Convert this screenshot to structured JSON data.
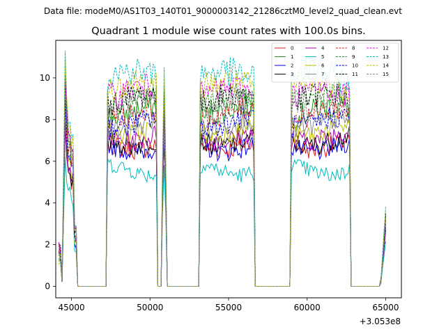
{
  "chart_data": {
    "type": "line",
    "suptitle": "Data file: modeM0/AS1T03_140T01_9000003142_21286cztM0_level2_quad_clean.evt",
    "title": "Quadrant 1 module wise count rates with 100.0s bins.",
    "xlabel": "",
    "ylabel": "",
    "x_offset_label": "+3.053e8",
    "xlim": [
      44000,
      66000
    ],
    "ylim": [
      -0.55,
      11.8
    ],
    "xticks": [
      45000,
      50000,
      55000,
      60000,
      65000
    ],
    "xtick_labels": [
      "45000",
      "50000",
      "55000",
      "60000",
      "65000"
    ],
    "yticks": [
      0,
      2,
      4,
      6,
      8,
      10
    ],
    "ytick_labels": [
      "0",
      "2",
      "4",
      "6",
      "8",
      "10"
    ],
    "legend_position": "top-right",
    "bin_size_s": 100,
    "gap_value": 0,
    "segments": [
      {
        "start": 44200,
        "end": 45300,
        "profile": "spike"
      },
      {
        "start": 47300,
        "end": 50400,
        "profile": "flat"
      },
      {
        "start": 50750,
        "end": 51050,
        "profile": "narrow"
      },
      {
        "start": 53200,
        "end": 56600,
        "profile": "flat"
      },
      {
        "start": 59000,
        "end": 62700,
        "profile": "flat"
      },
      {
        "start": 64700,
        "end": 65000,
        "profile": "rise"
      }
    ],
    "series": [
      {
        "name": "0",
        "color": "#e41a1c",
        "dash": "solid",
        "level": 6.8
      },
      {
        "name": "1",
        "color": "#1a9a1a",
        "dash": "solid",
        "level": 8.4
      },
      {
        "name": "2",
        "color": "#0000ee",
        "dash": "solid",
        "level": 6.7
      },
      {
        "name": "3",
        "color": "#000000",
        "dash": "solid",
        "level": 7.0
      },
      {
        "name": "4",
        "color": "#aa00aa",
        "dash": "solid",
        "level": 7.2
      },
      {
        "name": "5",
        "color": "#00bbbb",
        "dash": "solid",
        "level": 5.6
      },
      {
        "name": "6",
        "color": "#bbbb00",
        "dash": "solid",
        "level": 7.5
      },
      {
        "name": "7",
        "color": "#888888",
        "dash": "solid",
        "level": 7.8
      },
      {
        "name": "8",
        "color": "#e41a1c",
        "dash": "dashed",
        "level": 8.3
      },
      {
        "name": "9",
        "color": "#1a9a1a",
        "dash": "dashed",
        "level": 8.9
      },
      {
        "name": "10",
        "color": "#0000ee",
        "dash": "dashed",
        "level": 7.9
      },
      {
        "name": "11",
        "color": "#000000",
        "dash": "dashed",
        "level": 9.0
      },
      {
        "name": "12",
        "color": "#ee00ee",
        "dash": "dashed",
        "level": 9.3
      },
      {
        "name": "13",
        "color": "#00bbbb",
        "dash": "dashed",
        "level": 10.1
      },
      {
        "name": "14",
        "color": "#bbbb00",
        "dash": "dashed",
        "level": 9.6
      },
      {
        "name": "15",
        "color": "#888888",
        "dash": "dashed",
        "level": 8.7
      }
    ]
  }
}
